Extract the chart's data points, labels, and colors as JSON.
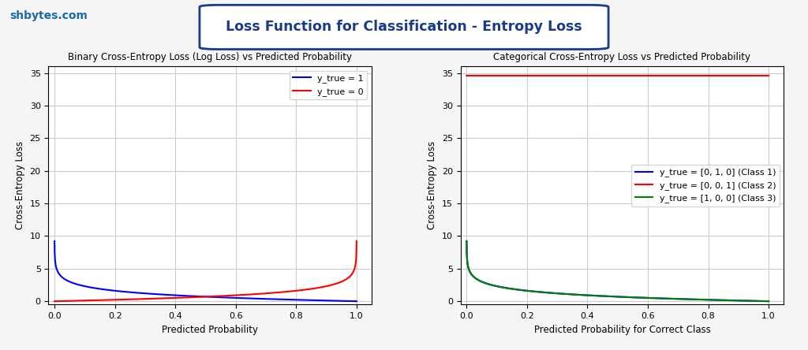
{
  "fig_width": 10.24,
  "fig_height": 4.44,
  "fig_bg_color": "#f5f5f5",
  "header_text": "Loss Function for Classification - Entropy Loss",
  "header_color": "#1a3a8a",
  "watermark_text": "shbytes.com",
  "watermark_color": "#1a6aaa",
  "plot1_title": "Binary Cross-Entropy Loss (Log Loss) vs Predicted Probability",
  "plot1_xlabel": "Predicted Probability",
  "plot1_ylabel": "Cross-Entropy Loss",
  "plot1_legend": [
    "y_true = 1",
    "y_true = 0"
  ],
  "plot1_colors": [
    "blue",
    "red"
  ],
  "plot2_title": "Categorical Cross-Entropy Loss vs Predicted Probability",
  "plot2_xlabel": "Predicted Probability for Correct Class",
  "plot2_ylabel": "Cross-Entropy Loss",
  "plot2_legend": [
    "y_true = [0, 1, 0] (Class 1)",
    "y_true = [0, 0, 1] (Class 2)",
    "y_true = [1, 0, 0] (Class 3)"
  ],
  "plot2_colors": [
    "blue",
    "red",
    "green"
  ],
  "ylim": [
    -0.5,
    36
  ],
  "xlim": [
    -0.02,
    1.05
  ],
  "yticks": [
    0,
    5,
    10,
    15,
    20,
    25,
    30,
    35
  ],
  "xticks": [
    0.0,
    0.2,
    0.4,
    0.6,
    0.8,
    1.0
  ],
  "grid_color": "#cccccc",
  "clip_max": 34.6,
  "red_const": 34.6,
  "n_points": 2000,
  "p_min": 0.0001,
  "p_max": 0.9999
}
